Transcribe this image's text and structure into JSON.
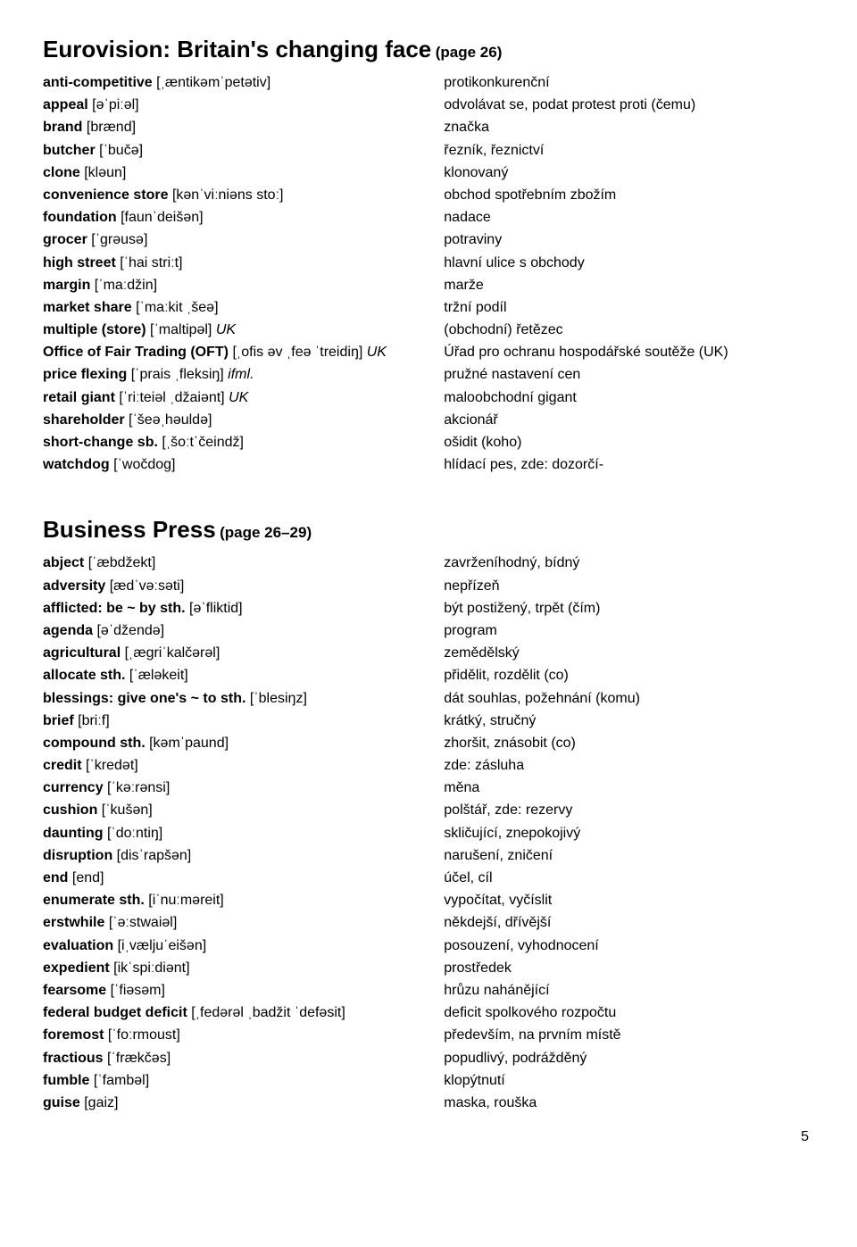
{
  "section1": {
    "title": "Eurovision: Britain's changing face",
    "page": "(page 26)",
    "entries": [
      {
        "term": "anti-competitive",
        "pron": "[ˌæntikəmˈpetətiv]",
        "note": "",
        "trans": "protikonkurenční"
      },
      {
        "term": "appeal",
        "pron": "[əˈpiːəl]",
        "note": "",
        "trans": "odvolávat se, podat protest proti (čemu)"
      },
      {
        "term": "brand",
        "pron": "[brænd]",
        "note": "",
        "trans": "značka"
      },
      {
        "term": "butcher",
        "pron": "[ˈbučə]",
        "note": "",
        "trans": "řezník, řeznictví"
      },
      {
        "term": "clone",
        "pron": "[kləun]",
        "note": "",
        "trans": "klonovaný"
      },
      {
        "term": "convenience store",
        "pron": "[kənˈviːniəns stoː]",
        "note": "",
        "trans": "obchod spotřebním zbožím"
      },
      {
        "term": "foundation",
        "pron": "[faunˈdeišən]",
        "note": "",
        "trans": "nadace"
      },
      {
        "term": "grocer",
        "pron": "[ˈgrəusə]",
        "note": "",
        "trans": "potraviny"
      },
      {
        "term": "high street",
        "pron": "[ˈhai striːt]",
        "note": "",
        "trans": "hlavní ulice s obchody"
      },
      {
        "term": "margin",
        "pron": "[ˈmaːdžin]",
        "note": "",
        "trans": "marže"
      },
      {
        "term": "market share",
        "pron": "[ˈmaːkit ˌšeə]",
        "note": "",
        "trans": "tržní podíl"
      },
      {
        "term": "multiple (store)",
        "pron": "[ˈmaltipəl]",
        "note": " UK",
        "trans": "(obchodní) řetězec"
      },
      {
        "term": "Office of Fair Trading (OFT)",
        "pron": "[ˌofis əv ˌfeə ˈtreidiŋ]",
        "note": " UK",
        "trans": "Úřad pro ochranu hospodářské soutěže (UK)"
      },
      {
        "term": "price flexing",
        "pron": "[ˈprais ˌfleksiŋ]",
        "note": " ifml.",
        "trans": "pružné nastavení cen"
      },
      {
        "term": "retail giant",
        "pron": "[ˈriːteiəl ˌdžaiənt]",
        "note": " UK",
        "trans": "maloobchodní gigant"
      },
      {
        "term": "shareholder",
        "pron": "[ˈšeəˌhəuldə]",
        "note": "",
        "trans": "akcionář"
      },
      {
        "term": "short-change sb.",
        "pron": "[ˌšoːtˈčeindž]",
        "note": "",
        "trans": "ošidit (koho)"
      },
      {
        "term": "watchdog",
        "pron": "[ˈwočdog]",
        "note": "",
        "trans": "hlídací pes, zde: dozorčí-"
      }
    ]
  },
  "section2": {
    "title": "Business Press",
    "page": "(page 26–29)",
    "entries": [
      {
        "term": "abject",
        "pron": "[ˈæbdžekt]",
        "note": "",
        "trans": "zavrženíhodný, bídný"
      },
      {
        "term": "adversity",
        "pron": "[ædˈvəːsəti]",
        "note": "",
        "trans": "nepřízeň"
      },
      {
        "term": "afflicted: be ~ by sth.",
        "pron": "[əˈfliktid]",
        "note": "",
        "trans": "být postižený, trpět (čím)"
      },
      {
        "term": "agenda",
        "pron": "[əˈdžendə]",
        "note": "",
        "trans": "program"
      },
      {
        "term": "agricultural",
        "pron": "[ˌægriˈkalčərəl]",
        "note": "",
        "trans": "zemědělský"
      },
      {
        "term": "allocate sth.",
        "pron": "[ˈæləkeit]",
        "note": "",
        "trans": "přidělit, rozdělit (co)"
      },
      {
        "term": "blessings: give one's ~ to sth.",
        "pron": "[ˈblesiŋz]",
        "note": "",
        "trans": "dát souhlas, požehnání (komu)"
      },
      {
        "term": "brief",
        "pron": "[briːf]",
        "note": "",
        "trans": "krátký, stručný"
      },
      {
        "term": "compound sth.",
        "pron": "[kəmˈpaund]",
        "note": "",
        "trans": "zhoršit, znásobit (co)"
      },
      {
        "term": "credit",
        "pron": "[ˈkredət]",
        "note": "",
        "trans": "zde: zásluha"
      },
      {
        "term": "currency",
        "pron": "[ˈkəːrənsi]",
        "note": "",
        "trans": "měna"
      },
      {
        "term": "cushion",
        "pron": "[ˈkušən]",
        "note": "",
        "trans": "polštář, zde: rezervy"
      },
      {
        "term": "daunting",
        "pron": "[ˈdoːntiŋ]",
        "note": "",
        "trans": "skličující, znepokojivý"
      },
      {
        "term": "disruption",
        "pron": "[disˈrapšən]",
        "note": "",
        "trans": "narušení, zničení"
      },
      {
        "term": "end",
        "pron": "[end]",
        "note": "",
        "trans": "účel, cíl"
      },
      {
        "term": "enumerate sth.",
        "pron": "[iˈnuːməreit]",
        "note": "",
        "trans": "vypočítat, vyčíslit"
      },
      {
        "term": "erstwhile",
        "pron": "[ˈəːstwaiəl]",
        "note": "",
        "trans": "někdejší, dřívější"
      },
      {
        "term": "evaluation",
        "pron": "[iˌvæljuˈeišən]",
        "note": "",
        "trans": "posouzení, vyhodnocení"
      },
      {
        "term": "expedient",
        "pron": "[ikˈspiːdiənt]",
        "note": "",
        "trans": "prostředek"
      },
      {
        "term": "fearsome",
        "pron": "[ˈfiəsəm]",
        "note": "",
        "trans": "hrůzu nahánějící"
      },
      {
        "term": "federal budget deficit",
        "pron": "[ˌfedərəl ˌbadžit ˈdefəsit]",
        "note": "",
        "trans": "deficit spolkového rozpočtu"
      },
      {
        "term": "foremost",
        "pron": "[ˈfoːrmoust]",
        "note": "",
        "trans": "především, na prvním místě"
      },
      {
        "term": "fractious",
        "pron": "[ˈfrækčəs]",
        "note": "",
        "trans": "popudlivý, podrážděný"
      },
      {
        "term": "fumble",
        "pron": "[ˈfambəl]",
        "note": "",
        "trans": "klopýtnutí"
      },
      {
        "term": "guise",
        "pron": "[gaiz]",
        "note": "",
        "trans": "maska, rouška"
      }
    ]
  },
  "pageNumber": "5"
}
